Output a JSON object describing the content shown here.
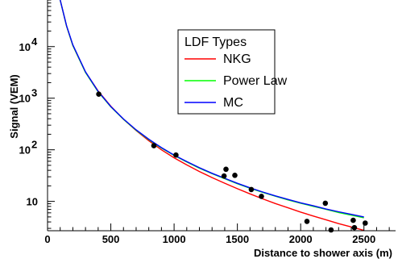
{
  "chart_data": {
    "type": "line",
    "xlabel": "Distance to shower axis (m)",
    "ylabel": "Signal (VEM)",
    "xlim": [
      0,
      2750
    ],
    "ylim": [
      2.7,
      80000
    ],
    "y_scale": "log",
    "grid": false,
    "x_ticks": [
      {
        "value": 0,
        "label": "0"
      },
      {
        "value": 500,
        "label": "500"
      },
      {
        "value": 1000,
        "label": "1000"
      },
      {
        "value": 1500,
        "label": "1500"
      },
      {
        "value": 2000,
        "label": "2000"
      },
      {
        "value": 2500,
        "label": "2500"
      }
    ],
    "y_ticks": [
      {
        "value": 10,
        "label": "10",
        "exp": ""
      },
      {
        "value": 100,
        "label": "10",
        "exp": "2"
      },
      {
        "value": 1000,
        "label": "10",
        "exp": "3"
      },
      {
        "value": 10000,
        "label": "10",
        "exp": "4"
      }
    ],
    "legend": {
      "title": "LDF Types",
      "placement": "top-right",
      "entries": [
        {
          "name": "NKG",
          "color": "#ff0000"
        },
        {
          "name": "Power Law",
          "color": "#00ff00"
        },
        {
          "name": "MC",
          "color": "#0000ff"
        }
      ]
    },
    "series": [
      {
        "name": "NKG",
        "color": "#ff0000",
        "x": [
          100,
          150,
          200,
          300,
          400,
          500,
          600,
          700,
          800,
          900,
          1000,
          1100,
          1200,
          1300,
          1400,
          1500,
          1600,
          1700,
          1800,
          1900,
          2000,
          2100,
          2200,
          2300,
          2400,
          2500
        ],
        "y": [
          80000,
          25000,
          10500,
          3200,
          1380,
          700,
          390,
          235,
          150,
          100,
          70,
          51,
          38,
          29,
          22.5,
          17.6,
          14,
          11.2,
          9.1,
          7.5,
          6.2,
          5.2,
          4.4,
          3.7,
          3.2,
          2.75
        ]
      },
      {
        "name": "Power Law",
        "color": "#00ff00",
        "x": [
          100,
          150,
          200,
          300,
          400,
          500,
          600,
          700,
          800,
          900,
          1000,
          1100,
          1200,
          1300,
          1400,
          1500,
          1600,
          1700,
          1800,
          1900,
          2000,
          2100,
          2200,
          2300,
          2400,
          2500
        ],
        "y": [
          80000,
          25000,
          10500,
          3150,
          1330,
          680,
          390,
          240,
          158,
          108,
          78,
          58,
          44,
          34.5,
          27.5,
          22,
          18,
          15,
          12.6,
          10.7,
          9.2,
          8,
          7,
          6.1,
          5.4,
          4.8
        ]
      },
      {
        "name": "MC",
        "color": "#0000ff",
        "x": [
          100,
          150,
          200,
          300,
          400,
          500,
          600,
          700,
          800,
          900,
          1000,
          1100,
          1200,
          1300,
          1400,
          1500,
          1600,
          1700,
          1800,
          1900,
          2000,
          2100,
          2200,
          2300,
          2400,
          2500
        ],
        "y": [
          80000,
          25500,
          10800,
          3250,
          1360,
          690,
          395,
          243,
          160,
          110,
          79,
          59,
          45,
          35,
          28,
          22.4,
          18.3,
          15.2,
          12.8,
          10.9,
          9.4,
          8.2,
          7.1,
          6.3,
          5.6,
          5.0
        ]
      },
      {
        "name": "data",
        "color": "#000000",
        "marker": "dot",
        "x": [
          405,
          840,
          1015,
          1395,
          1410,
          1480,
          1610,
          1690,
          2050,
          2195,
          2240,
          2415,
          2425,
          2510
        ],
        "y": [
          1200,
          120,
          79,
          31,
          42,
          32,
          17,
          12.5,
          4.1,
          9.2,
          2.8,
          4.3,
          3.1,
          3.8
        ]
      }
    ]
  }
}
